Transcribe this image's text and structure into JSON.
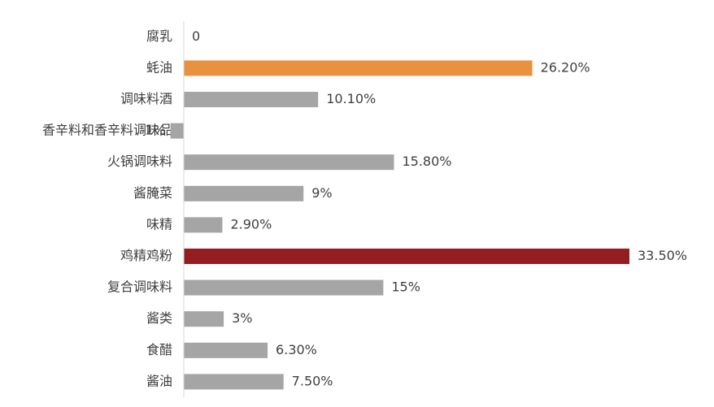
{
  "chart_data": {
    "type": "hbar",
    "categories": [
      "腐乳",
      "蚝油",
      "调味料酒",
      "香辛料和香辛料调味品",
      "火锅调味料",
      "酱腌菜",
      "味精",
      "鸡精鸡粉",
      "复合调味料",
      "酱类",
      "食醋",
      "酱油"
    ],
    "values": [
      0,
      26.2,
      10.1,
      -1,
      15.8,
      9,
      2.9,
      33.5,
      15,
      3,
      6.3,
      7.5
    ],
    "value_labels": [
      "0",
      "26.20%",
      "10.10%",
      "-1%",
      "15.80%",
      "9%",
      "2.90%",
      "33.50%",
      "15%",
      "3%",
      "6.30%",
      "7.50%"
    ],
    "colors": [
      "#a5a5a5",
      "#e8923f",
      "#a5a5a5",
      "#a5a5a5",
      "#a5a5a5",
      "#a5a5a5",
      "#a5a5a5",
      "#941d21",
      "#a5a5a5",
      "#a5a5a5",
      "#a5a5a5",
      "#a5a5a5"
    ]
  }
}
